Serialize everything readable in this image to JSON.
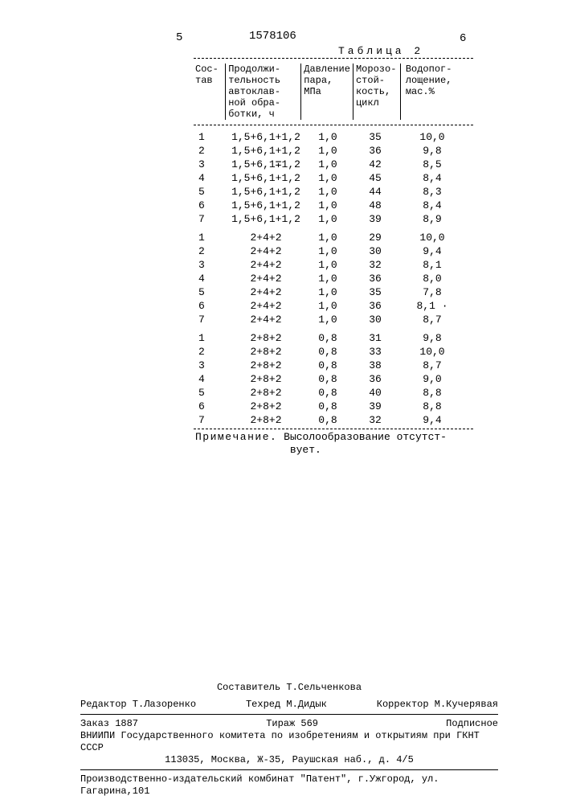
{
  "header": {
    "page_left": "5",
    "doc_number": "1578106",
    "page_right": "6"
  },
  "table": {
    "caption": "Таблица 2",
    "columns": {
      "c1": "Сос-\nтав",
      "c2": "Продолжи-\nтельность\nавтоклав-\nной обра-\nботки, ч",
      "c3": "Давление\nпара,\nМПа",
      "c4": "Морозо-\nстой-\nкость,\nцикл",
      "c5": "Водопог-\nлощение,\nмас.%"
    },
    "groups": [
      [
        {
          "n": "1",
          "t": "1,5+6,1+1,2",
          "p": "1,0",
          "m": "35",
          "w": "10,0"
        },
        {
          "n": "2",
          "t": "1,5+6,1+1,2",
          "p": "1,0",
          "m": "36",
          "w": "9,8"
        },
        {
          "n": "3",
          "t": "1,5+6,1∓1,2",
          "p": "1,0",
          "m": "42",
          "w": "8,5"
        },
        {
          "n": "4",
          "t": "1,5+6,1+1,2",
          "p": "1,0",
          "m": "45",
          "w": "8,4"
        },
        {
          "n": "5",
          "t": "1,5+6,1+1,2",
          "p": "1,0",
          "m": "44",
          "w": "8,3"
        },
        {
          "n": "6",
          "t": "1,5+6,1+1,2",
          "p": "1,0",
          "m": "48",
          "w": "8,4"
        },
        {
          "n": "7",
          "t": "1,5+6,1+1,2",
          "p": "1,0",
          "m": "39",
          "w": "8,9"
        }
      ],
      [
        {
          "n": "1",
          "t": "2+4+2",
          "p": "1,0",
          "m": "29",
          "w": "10,0"
        },
        {
          "n": "2",
          "t": "2+4+2",
          "p": "1,0",
          "m": "30",
          "w": "9,4"
        },
        {
          "n": "3",
          "t": "2+4+2",
          "p": "1,0",
          "m": "32",
          "w": "8,1"
        },
        {
          "n": "4",
          "t": "2+4+2",
          "p": "1,0",
          "m": "36",
          "w": "8,0"
        },
        {
          "n": "5",
          "t": "2+4+2",
          "p": "1,0",
          "m": "35",
          "w": "7,8"
        },
        {
          "n": "6",
          "t": "2+4+2",
          "p": "1,0",
          "m": "36",
          "w": "8,1 ·"
        },
        {
          "n": "7",
          "t": "2+4+2",
          "p": "1,0",
          "m": "30",
          "w": "8,7"
        }
      ],
      [
        {
          "n": "1",
          "t": "2+8+2",
          "p": "0,8",
          "m": "31",
          "w": "9,8"
        },
        {
          "n": "2",
          "t": "2+8+2",
          "p": "0,8",
          "m": "33",
          "w": "10,0"
        },
        {
          "n": "3",
          "t": "2+8+2",
          "p": "0,8",
          "m": "38",
          "w": "8,7"
        },
        {
          "n": "4",
          "t": "2+8+2",
          "p": "0,8",
          "m": "36",
          "w": "9,0"
        },
        {
          "n": "5",
          "t": "2+8+2",
          "p": "0,8",
          "m": "40",
          "w": "8,8"
        },
        {
          "n": "6",
          "t": "2+8+2",
          "p": "0,8",
          "m": "39",
          "w": "8,8"
        },
        {
          "n": "7",
          "t": "2+8+2",
          "p": "0,8",
          "m": "32",
          "w": "9,4"
        }
      ]
    ],
    "note_label": "Примечание.",
    "note_text_1": "Высолообразование отсутст-",
    "note_text_2": "вует."
  },
  "footer": {
    "compiler": "Составитель Т.Сельченкова",
    "editor": "Редактор Т.Лазоренко",
    "tehred": "Техред  М.Дидык",
    "corrector": "Корректор М.Кучерявая",
    "order": "Заказ 1887",
    "tirazh": "Тираж 569",
    "podpis": "Подписное",
    "org1": "ВНИИПИ Государственного комитета по изобретениям и открытиям при ГКНТ СССР",
    "org2": "113035, Москва, Ж-35, Раушская наб., д. 4/5",
    "prod": "Производственно-издательский комбинат \"Патент\", г.Ужгород, ул. Гагарина,101"
  }
}
